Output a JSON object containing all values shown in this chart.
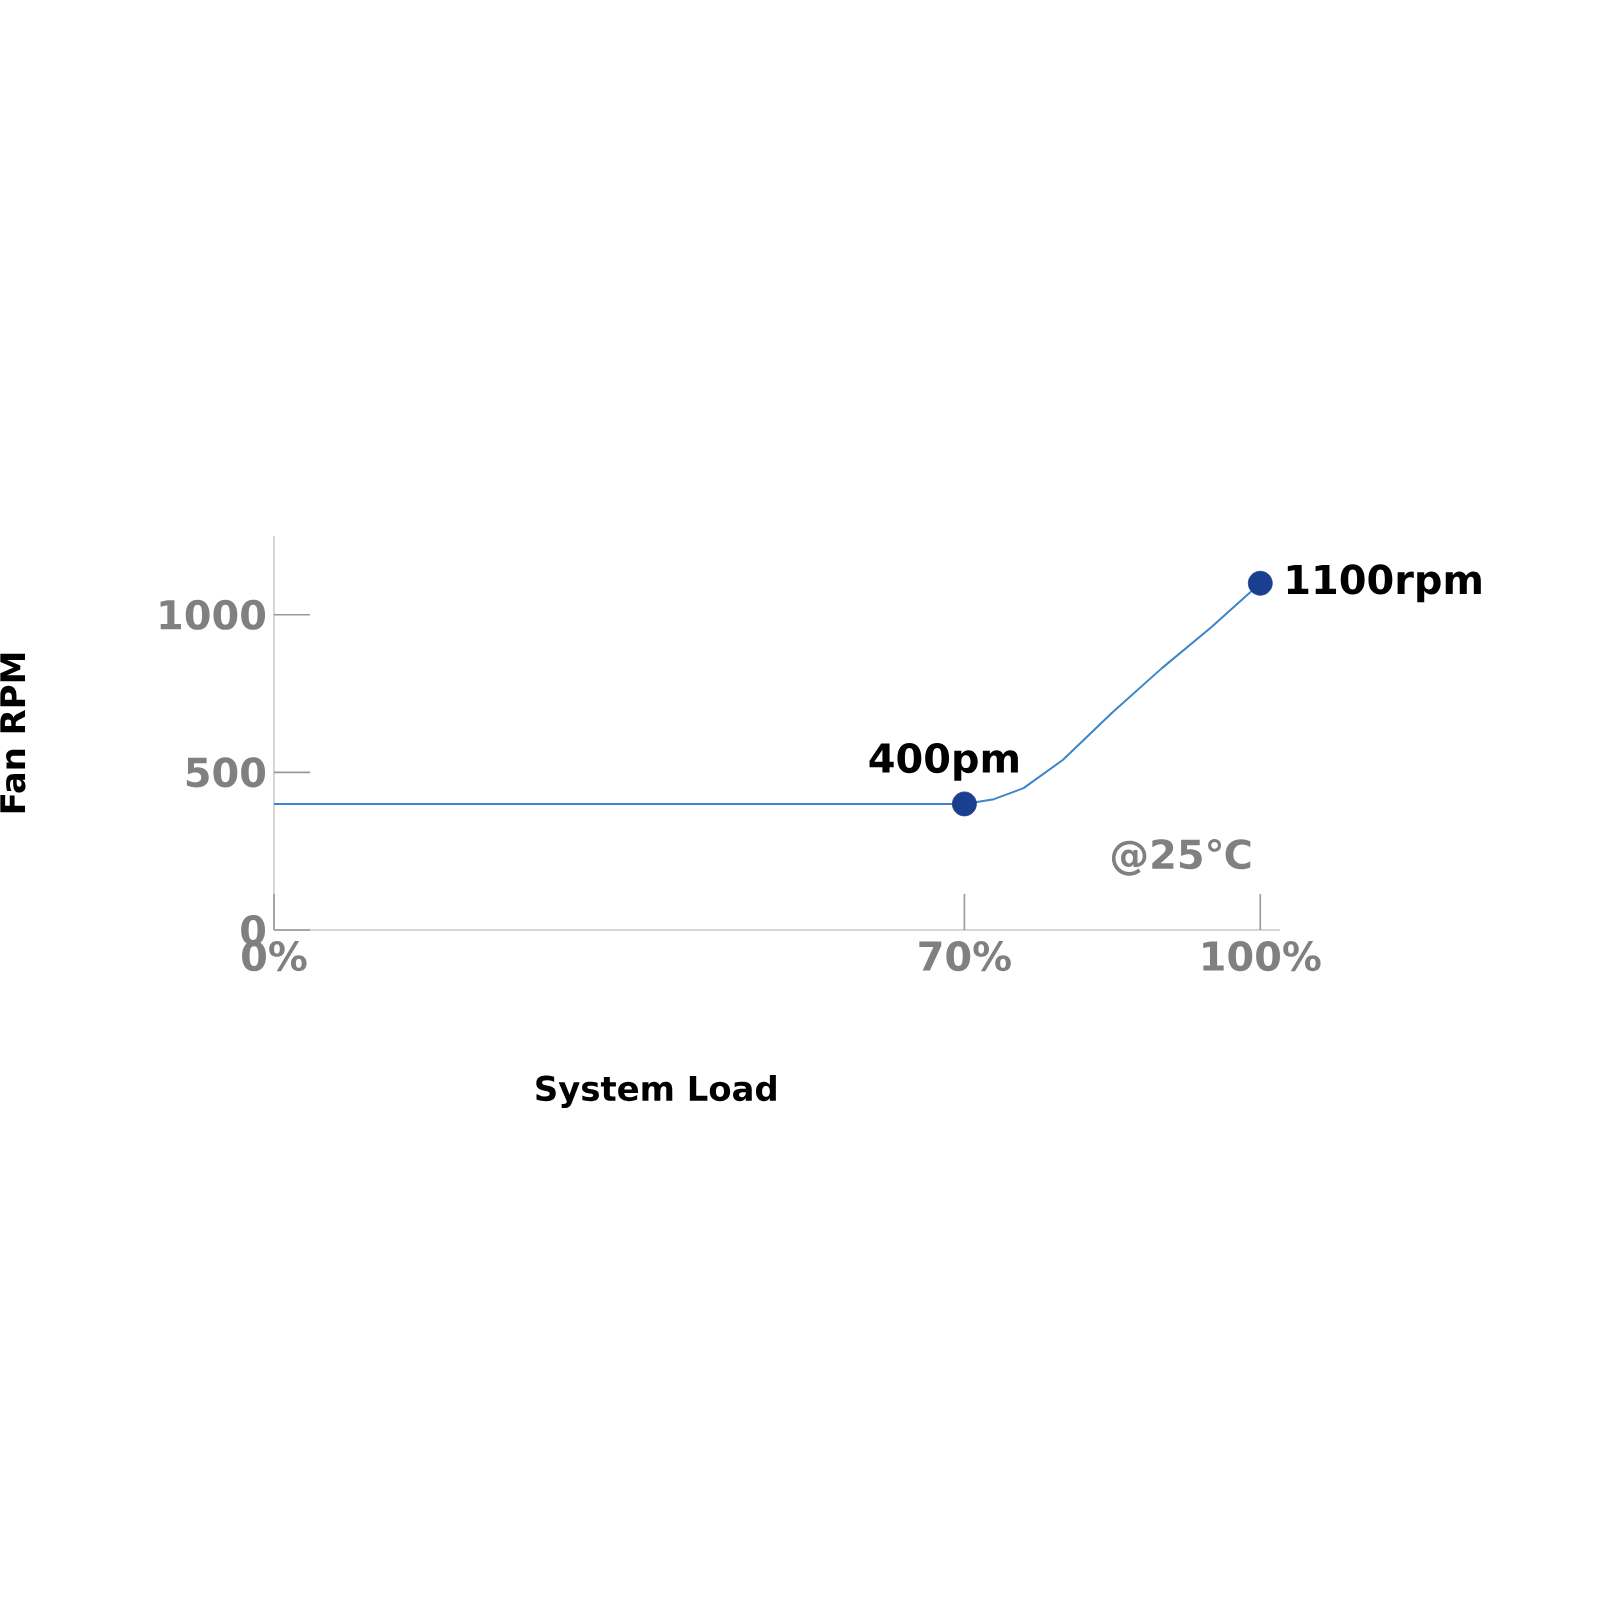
{
  "chart_data": {
    "type": "line",
    "xlabel": "System Load",
    "ylabel": "Fan RPM",
    "xlim": [
      0,
      102
    ],
    "ylim": [
      0,
      1250
    ],
    "xticks": [
      {
        "value": 0,
        "label": "0%"
      },
      {
        "value": 70,
        "label": "70%"
      },
      {
        "value": 100,
        "label": "100%"
      }
    ],
    "yticks": [
      0,
      500,
      1000
    ],
    "series": [
      {
        "color": "#3a86c8",
        "marker": "none",
        "x": [
          0,
          70,
          73,
          76,
          80,
          85,
          90,
          95,
          100
        ],
        "values": [
          400,
          400,
          415,
          450,
          540,
          690,
          830,
          960,
          1100
        ]
      },
      {
        "type": "scatter",
        "color": "#1a3f8f",
        "marker": "circle",
        "x": [
          70,
          100
        ],
        "values": [
          400,
          1100
        ],
        "value_labels": [
          "400pm",
          "1100rpm"
        ]
      }
    ],
    "annotations": [
      "@25℃"
    ],
    "grid": false
  }
}
